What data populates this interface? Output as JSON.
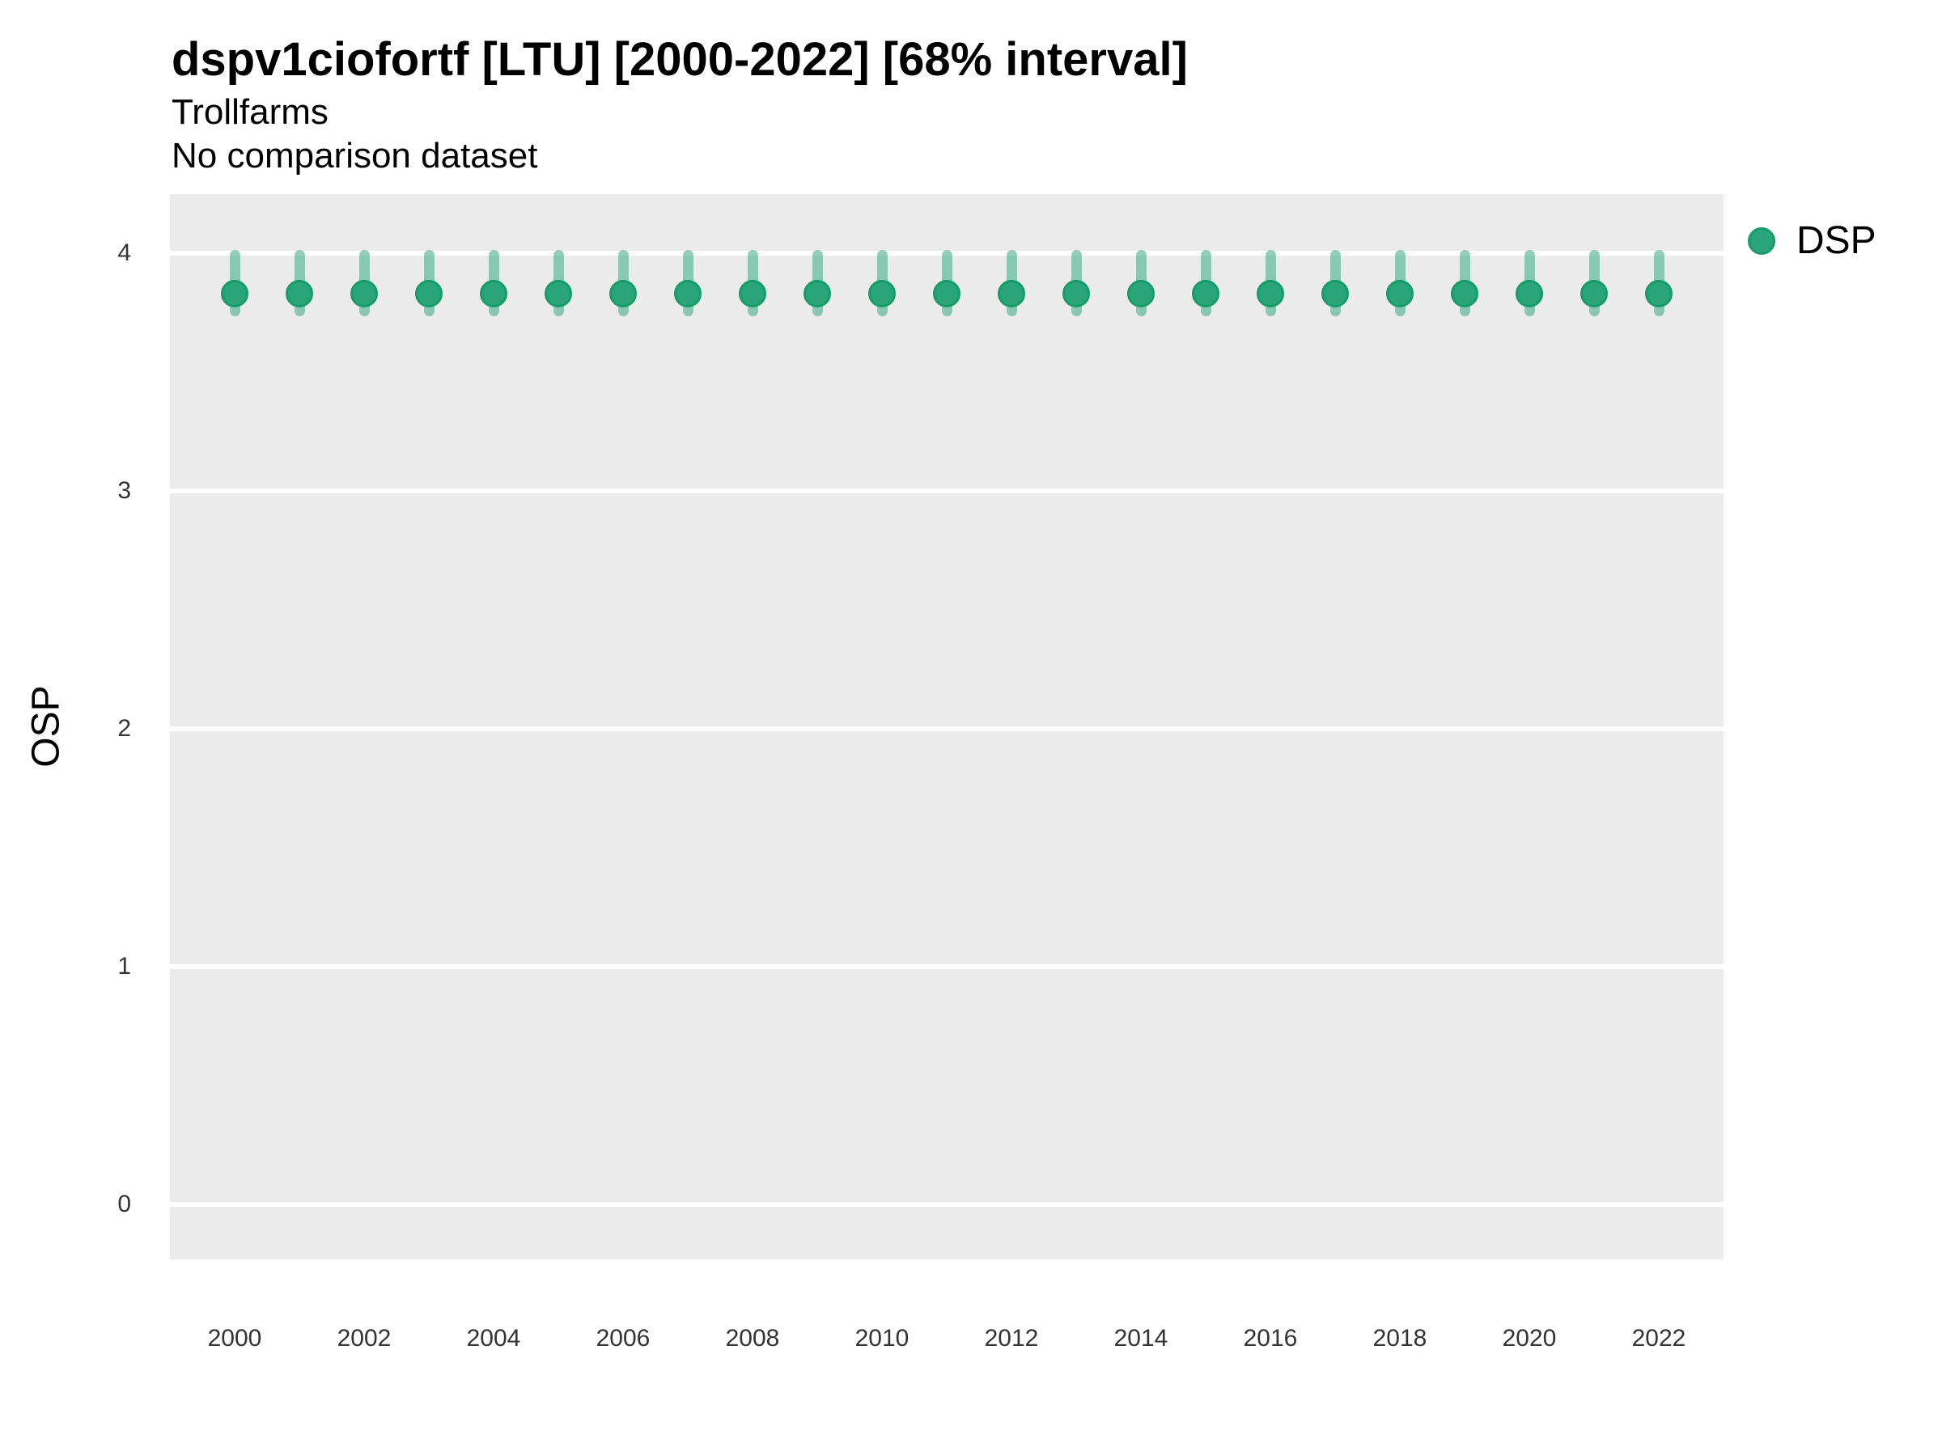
{
  "header": {
    "title": "dspv1ciofortf [LTU] [2000-2022] [68% interval]",
    "subtitle": "Trollfarms",
    "note": "No comparison dataset"
  },
  "legend": {
    "position": "right-top",
    "items": [
      {
        "label": "DSP",
        "color": "#2aa47a",
        "edge_color": "#169c68"
      }
    ]
  },
  "axes": {
    "y_title": "OSP",
    "x_title": ""
  },
  "chart_data": {
    "type": "scatter",
    "title": "dspv1ciofortf [LTU] [2000-2022] [68% interval]",
    "subtitle": "Trollfarms",
    "note": "No comparison dataset",
    "xlabel": "",
    "ylabel": "OSP",
    "interval_level": "68%",
    "x": [
      2000,
      2001,
      2002,
      2003,
      2004,
      2005,
      2006,
      2007,
      2008,
      2009,
      2010,
      2011,
      2012,
      2013,
      2014,
      2015,
      2016,
      2017,
      2018,
      2019,
      2020,
      2021,
      2022
    ],
    "series": [
      {
        "name": "DSP",
        "values": [
          3.83,
          3.83,
          3.83,
          3.83,
          3.83,
          3.83,
          3.83,
          3.83,
          3.83,
          3.83,
          3.83,
          3.83,
          3.83,
          3.83,
          3.83,
          3.83,
          3.83,
          3.83,
          3.83,
          3.83,
          3.83,
          3.83,
          3.83
        ],
        "interval_low": [
          3.75,
          3.75,
          3.75,
          3.75,
          3.75,
          3.75,
          3.75,
          3.75,
          3.75,
          3.75,
          3.75,
          3.75,
          3.75,
          3.75,
          3.75,
          3.75,
          3.75,
          3.75,
          3.75,
          3.75,
          3.75,
          3.75,
          3.75
        ],
        "interval_high": [
          4.0,
          4.0,
          4.0,
          4.0,
          4.0,
          4.0,
          4.0,
          4.0,
          4.0,
          4.0,
          4.0,
          4.0,
          4.0,
          4.0,
          4.0,
          4.0,
          4.0,
          4.0,
          4.0,
          4.0,
          4.0,
          4.0,
          4.0
        ]
      }
    ],
    "xticks": [
      2000,
      2002,
      2004,
      2006,
      2008,
      2010,
      2012,
      2014,
      2016,
      2018,
      2020,
      2022
    ],
    "yticks": [
      0,
      1,
      2,
      3,
      4
    ],
    "xlim": [
      1999,
      2023
    ],
    "ylim": [
      -0.23,
      4.25
    ],
    "grid": "horizontal-major-only",
    "legend_position": "right-top",
    "colors": {
      "point": "#2aa47a",
      "point_edge": "#169c68",
      "interval": "rgba(42, 164, 122, 0.5)",
      "panel_bg": "#ebebeb",
      "gridline": "#ffffff",
      "tick_text": "#333333"
    }
  }
}
